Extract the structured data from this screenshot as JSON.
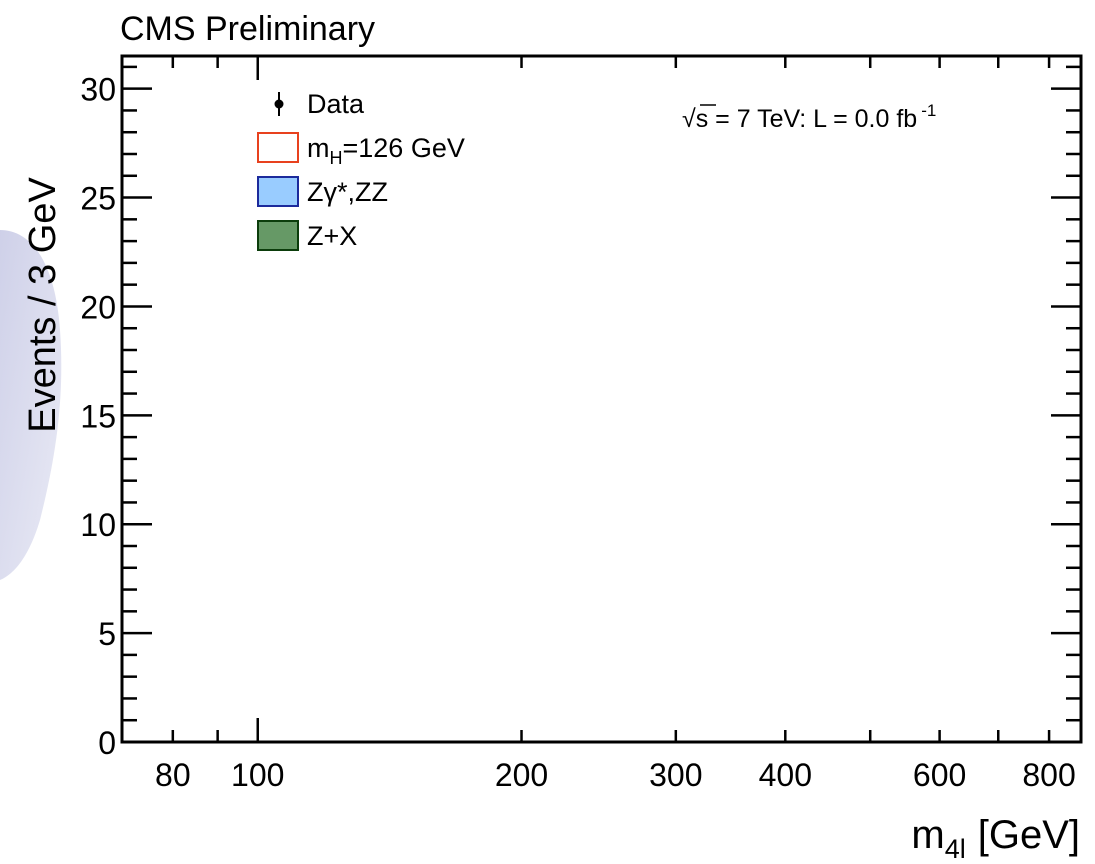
{
  "header": {
    "experiment_label": "CMS Preliminary"
  },
  "chart_data": {
    "type": "bar",
    "title": "CMS Preliminary",
    "xlabel_main": "m",
    "xlabel_sub": "4l",
    "xlabel_unit": "[GeV]",
    "ylabel": "Events / 3 GeV",
    "xscale": "log",
    "xlim": [
      70,
      870
    ],
    "ylim": [
      0,
      31.5
    ],
    "x_tick_labels": [
      80,
      100,
      200,
      300,
      400,
      600,
      800
    ],
    "y_tick_labels": [
      0,
      5,
      10,
      15,
      20,
      25,
      30
    ],
    "grid": false,
    "legend_position": "top-left",
    "legend": [
      {
        "name": "Data",
        "marker": "point-with-error"
      },
      {
        "name_main": "m",
        "name_sub": "H",
        "name_rest": "=126 GeV",
        "fill": "#ffffff",
        "stroke": "#e8411e"
      },
      {
        "name": "Zγ*,ZZ",
        "fill": "#99ccff",
        "stroke": "#1c2a9c"
      },
      {
        "name": "Z+X",
        "fill": "#669966",
        "stroke": "#0b3d0b"
      }
    ],
    "annotation": {
      "sqrt_symbol": "√",
      "s": "s",
      "text": " = 7 TeV: L = 0.0 fb",
      "superscript": "-1"
    },
    "series": [],
    "colors": {
      "axis": "#000000",
      "background": "#ffffff"
    }
  }
}
